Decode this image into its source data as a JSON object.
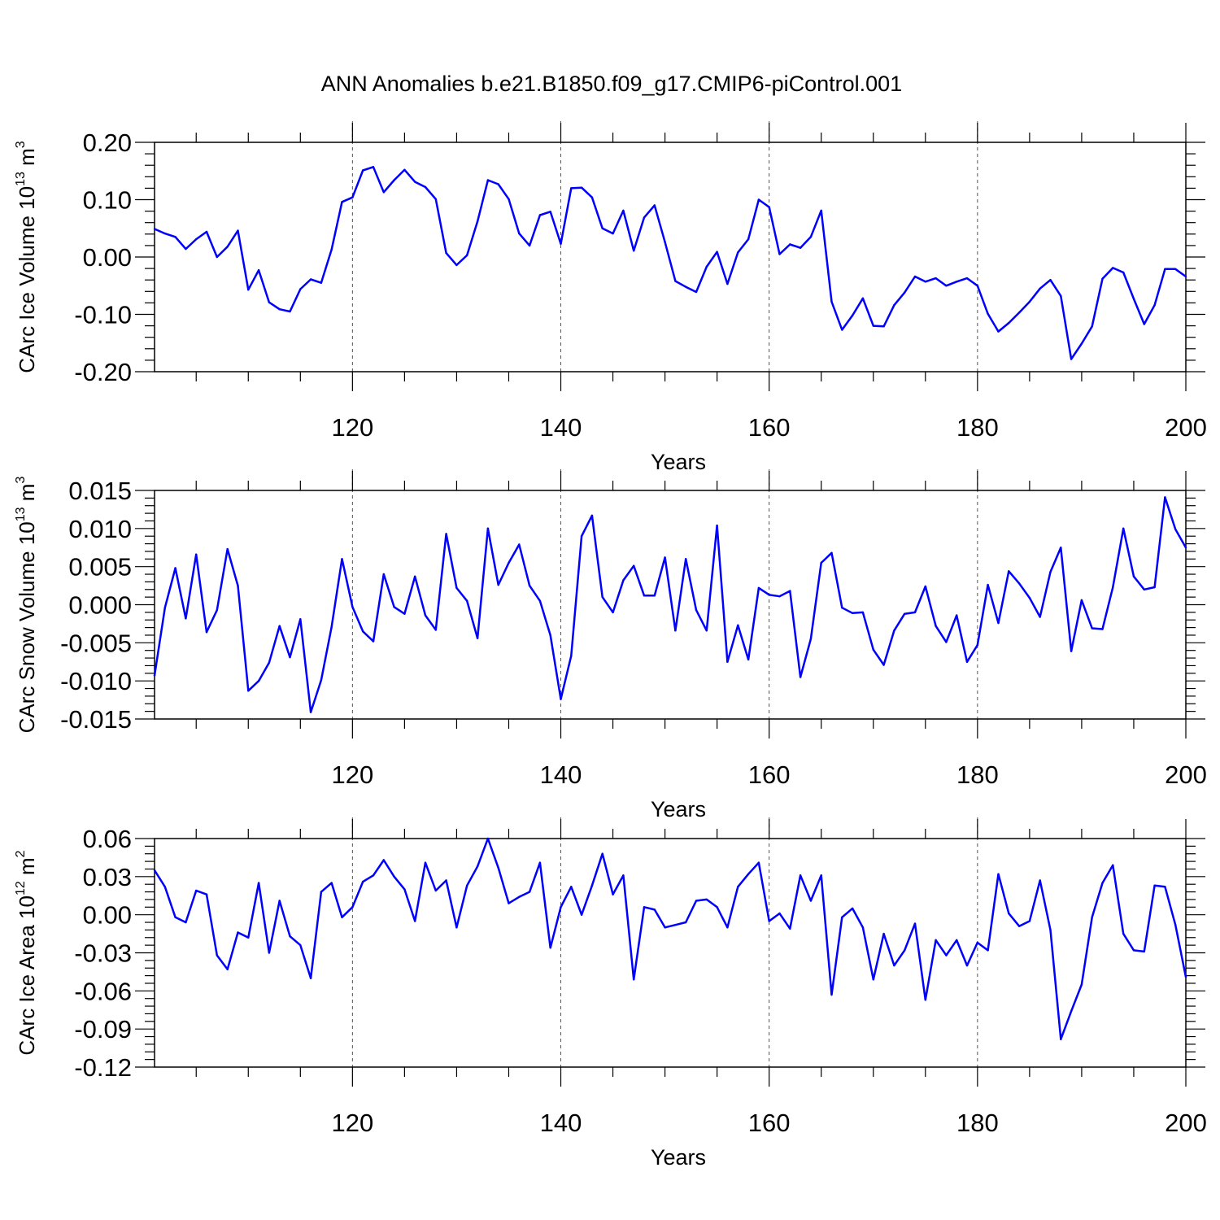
{
  "chart_data": {
    "title": "ANN Anomalies b.e21.B1850.f09_g17.CMIP6-piControl.001",
    "panels": [
      {
        "type": "line",
        "ylabel": "CArc Ice Volume 10",
        "ylabel_exp": "13",
        "ylabel_unit": " m",
        "ylabel_unit_exp": "3",
        "xlabel": "Years",
        "xlim": [
          101,
          200
        ],
        "ylim": [
          -0.2,
          0.2
        ],
        "xticks": [
          120,
          140,
          160,
          180,
          200
        ],
        "xtick_labels": [
          "120",
          "140",
          "160",
          "180",
          "200"
        ],
        "yticks": [
          -0.2,
          -0.1,
          0.0,
          0.1,
          0.2
        ],
        "ytick_labels": [
          "-0.20",
          "-0.10",
          "0.00",
          "0.10",
          "0.20"
        ],
        "grid_x": [
          120,
          140,
          160,
          180
        ],
        "series": [
          {
            "color": "#0000ff",
            "x": [
              101,
              102,
              103,
              104,
              105,
              106,
              107,
              108,
              109,
              110,
              111,
              112,
              113,
              114,
              115,
              116,
              117,
              118,
              119,
              120,
              121,
              122,
              123,
              124,
              125,
              126,
              127,
              128,
              129,
              130,
              131,
              132,
              133,
              134,
              135,
              136,
              137,
              138,
              139,
              140,
              141,
              142,
              143,
              144,
              145,
              146,
              147,
              148,
              149,
              150,
              151,
              152,
              153,
              154,
              155,
              156,
              157,
              158,
              159,
              160,
              161,
              162,
              163,
              164,
              165,
              166,
              167,
              168,
              169,
              170,
              171,
              172,
              173,
              174,
              175,
              176,
              177,
              178,
              179,
              180,
              181,
              182,
              183,
              184,
              185,
              186,
              187,
              188,
              189,
              190,
              191,
              192,
              193,
              194,
              195,
              196,
              197,
              198,
              199,
              200
            ],
            "y": [
              0.049,
              0.041,
              0.035,
              0.014,
              0.031,
              0.044,
              0.0,
              0.018,
              0.046,
              -0.057,
              -0.023,
              -0.079,
              -0.091,
              -0.095,
              -0.056,
              -0.039,
              -0.045,
              0.013,
              0.096,
              0.104,
              0.151,
              0.157,
              0.113,
              0.134,
              0.152,
              0.131,
              0.122,
              0.101,
              0.007,
              -0.014,
              0.003,
              0.062,
              0.134,
              0.127,
              0.101,
              0.041,
              0.02,
              0.073,
              0.079,
              0.023,
              0.12,
              0.121,
              0.104,
              0.05,
              0.041,
              0.081,
              0.011,
              0.069,
              0.09,
              0.026,
              -0.042,
              -0.052,
              -0.061,
              -0.017,
              0.009,
              -0.047,
              0.008,
              0.031,
              0.1,
              0.087,
              0.005,
              0.022,
              0.016,
              0.035,
              0.081,
              -0.078,
              -0.127,
              -0.102,
              -0.072,
              -0.12,
              -0.121,
              -0.084,
              -0.062,
              -0.034,
              -0.043,
              -0.037,
              -0.05,
              -0.043,
              -0.037,
              -0.05,
              -0.099,
              -0.13,
              -0.115,
              -0.097,
              -0.078,
              -0.055,
              -0.04,
              -0.068,
              -0.178,
              -0.151,
              -0.121,
              -0.038,
              -0.019,
              -0.027,
              -0.073,
              -0.117,
              -0.084,
              -0.021,
              -0.021,
              -0.034
            ]
          }
        ]
      },
      {
        "type": "line",
        "ylabel": "CArc Snow Volume 10",
        "ylabel_exp": "13",
        "ylabel_unit": " m",
        "ylabel_unit_exp": "3",
        "xlabel": "Years",
        "xlim": [
          101,
          200
        ],
        "ylim": [
          -0.015,
          0.015
        ],
        "xticks": [
          120,
          140,
          160,
          180,
          200
        ],
        "xtick_labels": [
          "120",
          "140",
          "160",
          "180",
          "200"
        ],
        "yticks": [
          -0.015,
          -0.01,
          -0.005,
          0.0,
          0.005,
          0.01,
          0.015
        ],
        "ytick_labels": [
          "-0.015",
          "-0.010",
          "-0.005",
          "0.000",
          "0.005",
          "0.010",
          "0.015"
        ],
        "grid_x": [
          120,
          140,
          160,
          180
        ],
        "series": [
          {
            "color": "#0000ff",
            "x": [
              101,
              102,
              103,
              104,
              105,
              106,
              107,
              108,
              109,
              110,
              111,
              112,
              113,
              114,
              115,
              116,
              117,
              118,
              119,
              120,
              121,
              122,
              123,
              124,
              125,
              126,
              127,
              128,
              129,
              130,
              131,
              132,
              133,
              134,
              135,
              136,
              137,
              138,
              139,
              140,
              141,
              142,
              143,
              144,
              145,
              146,
              147,
              148,
              149,
              150,
              151,
              152,
              153,
              154,
              155,
              156,
              157,
              158,
              159,
              160,
              161,
              162,
              163,
              164,
              165,
              166,
              167,
              168,
              169,
              170,
              171,
              172,
              173,
              174,
              175,
              176,
              177,
              178,
              179,
              180,
              181,
              182,
              183,
              184,
              185,
              186,
              187,
              188,
              189,
              190,
              191,
              192,
              193,
              194,
              195,
              196,
              197,
              198,
              199,
              200
            ],
            "y": [
              -0.0093,
              -0.0004,
              0.0048,
              -0.0018,
              0.0066,
              -0.0036,
              -0.0007,
              0.0073,
              0.0025,
              -0.0113,
              -0.01,
              -0.0076,
              -0.0028,
              -0.0069,
              -0.0019,
              -0.0141,
              -0.0099,
              -0.0029,
              0.006,
              -0.0003,
              -0.0035,
              -0.0048,
              0.004,
              -0.0003,
              -0.0012,
              0.0037,
              -0.0014,
              -0.0033,
              0.0093,
              0.0022,
              0.0005,
              -0.0044,
              0.01,
              0.0026,
              0.0055,
              0.0079,
              0.0025,
              0.0005,
              -0.004,
              -0.0124,
              -0.0067,
              0.009,
              0.0117,
              0.001,
              -0.001,
              0.0032,
              0.0051,
              0.0012,
              0.0012,
              0.0062,
              -0.0034,
              0.006,
              -0.0007,
              -0.0034,
              0.0104,
              -0.0075,
              -0.0027,
              -0.0072,
              0.0022,
              0.0013,
              0.0011,
              0.0018,
              -0.0095,
              -0.0045,
              0.0055,
              0.0068,
              -0.0004,
              -0.0011,
              -0.001,
              -0.0059,
              -0.0079,
              -0.0034,
              -0.0012,
              -0.001,
              0.0024,
              -0.0028,
              -0.0049,
              -0.0014,
              -0.0075,
              -0.0053,
              0.0026,
              -0.0024,
              0.0044,
              0.0028,
              0.0009,
              -0.0016,
              0.0043,
              0.0075,
              -0.0061,
              0.0006,
              -0.0031,
              -0.0032,
              0.0023,
              0.01,
              0.0037,
              0.002,
              0.0023,
              0.0141,
              0.0099,
              0.0075
            ]
          }
        ]
      },
      {
        "type": "line",
        "ylabel": "CArc Ice Area 10",
        "ylabel_exp": "12",
        "ylabel_unit": " m",
        "ylabel_unit_exp": "2",
        "xlabel": "Years",
        "xlim": [
          101,
          200
        ],
        "ylim": [
          -0.12,
          0.06
        ],
        "xticks": [
          120,
          140,
          160,
          180,
          200
        ],
        "xtick_labels": [
          "120",
          "140",
          "160",
          "180",
          "200"
        ],
        "yticks": [
          -0.12,
          -0.09,
          -0.06,
          -0.03,
          0.0,
          0.03,
          0.06
        ],
        "ytick_labels": [
          "-0.12",
          "-0.09",
          "-0.06",
          "-0.03",
          "0.00",
          "0.03",
          "0.06"
        ],
        "grid_x": [
          120,
          140,
          160,
          180
        ],
        "series": [
          {
            "color": "#0000ff",
            "x": [
              101,
              102,
              103,
              104,
              105,
              106,
              107,
              108,
              109,
              110,
              111,
              112,
              113,
              114,
              115,
              116,
              117,
              118,
              119,
              120,
              121,
              122,
              123,
              124,
              125,
              126,
              127,
              128,
              129,
              130,
              131,
              132,
              133,
              134,
              135,
              136,
              137,
              138,
              139,
              140,
              141,
              142,
              143,
              144,
              145,
              146,
              147,
              148,
              149,
              150,
              151,
              152,
              153,
              154,
              155,
              156,
              157,
              158,
              159,
              160,
              161,
              162,
              163,
              164,
              165,
              166,
              167,
              168,
              169,
              170,
              171,
              172,
              173,
              174,
              175,
              176,
              177,
              178,
              179,
              180,
              181,
              182,
              183,
              184,
              185,
              186,
              187,
              188,
              189,
              190,
              191,
              192,
              193,
              194,
              195,
              196,
              197,
              198,
              199,
              200
            ],
            "y": [
              0.035,
              0.022,
              -0.002,
              -0.006,
              0.019,
              0.016,
              -0.032,
              -0.043,
              -0.014,
              -0.018,
              0.025,
              -0.03,
              0.011,
              -0.017,
              -0.024,
              -0.05,
              0.018,
              0.025,
              -0.002,
              0.006,
              0.026,
              0.031,
              0.043,
              0.03,
              0.02,
              -0.005,
              0.041,
              0.019,
              0.027,
              -0.01,
              0.023,
              0.038,
              0.06,
              0.037,
              0.009,
              0.014,
              0.018,
              0.041,
              -0.026,
              0.006,
              0.022,
              0.0,
              0.023,
              0.048,
              0.016,
              0.031,
              -0.051,
              0.006,
              0.004,
              -0.01,
              -0.008,
              -0.006,
              0.011,
              0.012,
              0.006,
              -0.01,
              0.022,
              0.032,
              0.041,
              -0.005,
              0.001,
              -0.011,
              0.031,
              0.011,
              0.031,
              -0.063,
              -0.002,
              0.005,
              -0.01,
              -0.051,
              -0.015,
              -0.04,
              -0.028,
              -0.007,
              -0.067,
              -0.02,
              -0.032,
              -0.02,
              -0.04,
              -0.022,
              -0.028,
              0.032,
              0.001,
              -0.009,
              -0.005,
              0.027,
              -0.012,
              -0.098,
              -0.076,
              -0.055,
              -0.002,
              0.025,
              0.039,
              -0.015,
              -0.028,
              -0.029,
              0.023,
              0.022,
              -0.008,
              -0.049
            ]
          }
        ]
      }
    ]
  }
}
